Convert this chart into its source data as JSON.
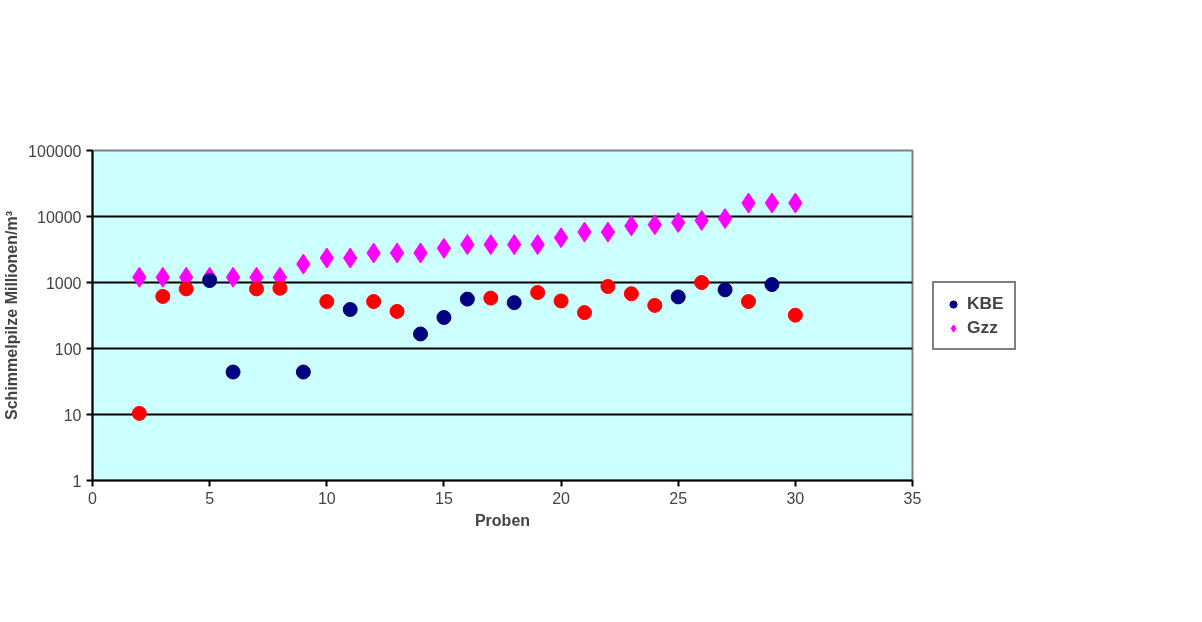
{
  "chart_data": {
    "type": "scatter",
    "xlabel": "Proben",
    "ylabel": "Schimmelpilze Millionen/m³",
    "x": [
      2,
      3,
      4,
      5,
      6,
      7,
      8,
      9,
      10,
      11,
      12,
      13,
      14,
      15,
      16,
      17,
      18,
      19,
      20,
      21,
      22,
      23,
      24,
      25,
      26,
      27,
      28,
      29,
      30
    ],
    "series": [
      {
        "name": "KBE",
        "color": "#000080",
        "marker": "circle",
        "values": [
          null,
          null,
          null,
          1070,
          44,
          null,
          null,
          44,
          null,
          390,
          null,
          null,
          166,
          295,
          560,
          null,
          495,
          null,
          null,
          null,
          null,
          null,
          null,
          605,
          null,
          775,
          null,
          930,
          null
        ]
      },
      {
        "color": "#ff0000",
        "marker": "circle",
        "values": [
          10.4,
          615,
          800,
          null,
          null,
          800,
          820,
          null,
          515,
          null,
          515,
          365,
          null,
          null,
          null,
          580,
          null,
          705,
          525,
          350,
          870,
          675,
          450,
          null,
          1000,
          null,
          515,
          null,
          320
        ]
      },
      {
        "name": "Gzz",
        "color": "#ff00ff",
        "marker": "diamond",
        "values": [
          1200,
          1200,
          1200,
          1200,
          1200,
          1200,
          1200,
          1900,
          2350,
          2350,
          2800,
          2800,
          2800,
          3300,
          3750,
          3750,
          3750,
          3750,
          4760,
          5800,
          5800,
          7200,
          7500,
          8100,
          8700,
          9300,
          16000,
          16000,
          16000
        ]
      }
    ],
    "log": true,
    "xlim": [
      0,
      35
    ],
    "xticks": [
      0,
      5,
      10,
      15,
      20,
      25,
      30,
      35
    ],
    "ylim": [
      1,
      100000
    ],
    "yticks": [
      1,
      10,
      100,
      1000,
      10000,
      100000
    ],
    "grid": "y",
    "legend": "right"
  }
}
